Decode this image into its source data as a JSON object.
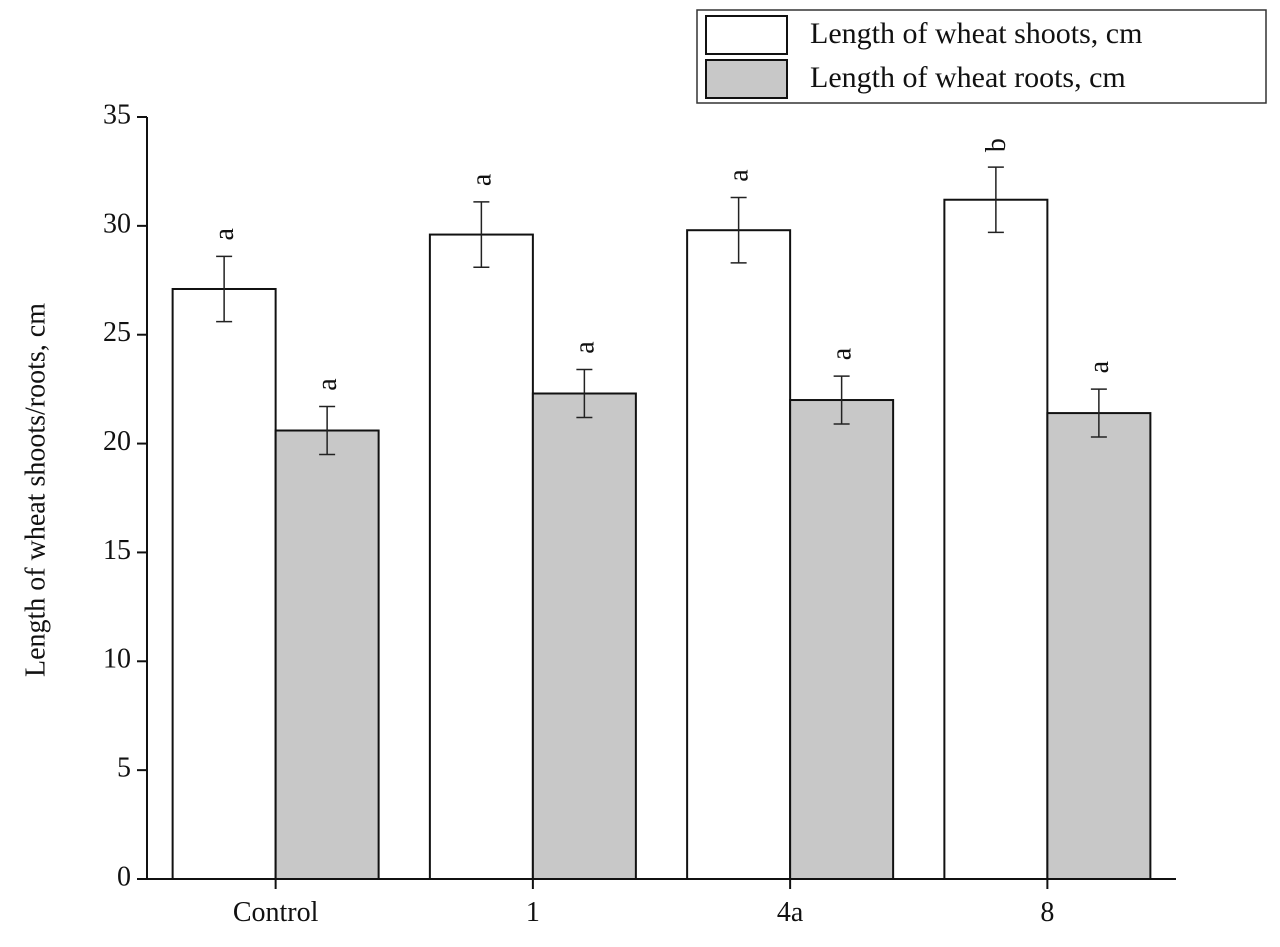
{
  "chart_data": {
    "type": "bar",
    "y_label": "Length of wheat shoots/roots, cm",
    "categories": [
      "Control",
      "1",
      "4a",
      "8"
    ],
    "series": [
      {
        "name": "Length of wheat shoots, cm",
        "color": "#ffffff",
        "values": [
          27.1,
          29.6,
          29.8,
          31.2
        ],
        "errors": [
          1.5,
          1.5,
          1.5,
          1.5
        ],
        "labels": [
          "a",
          "a",
          "a",
          "b"
        ]
      },
      {
        "name": "Length of wheat roots, cm",
        "color": "#c8c8c8",
        "values": [
          20.6,
          22.3,
          22.0,
          21.4
        ],
        "errors": [
          1.1,
          1.1,
          1.1,
          1.1
        ],
        "labels": [
          "a",
          "a",
          "a",
          "a"
        ]
      }
    ],
    "ylim": [
      0,
      35
    ],
    "yticks": [
      0,
      5,
      10,
      15,
      20,
      25,
      30,
      35
    ]
  }
}
